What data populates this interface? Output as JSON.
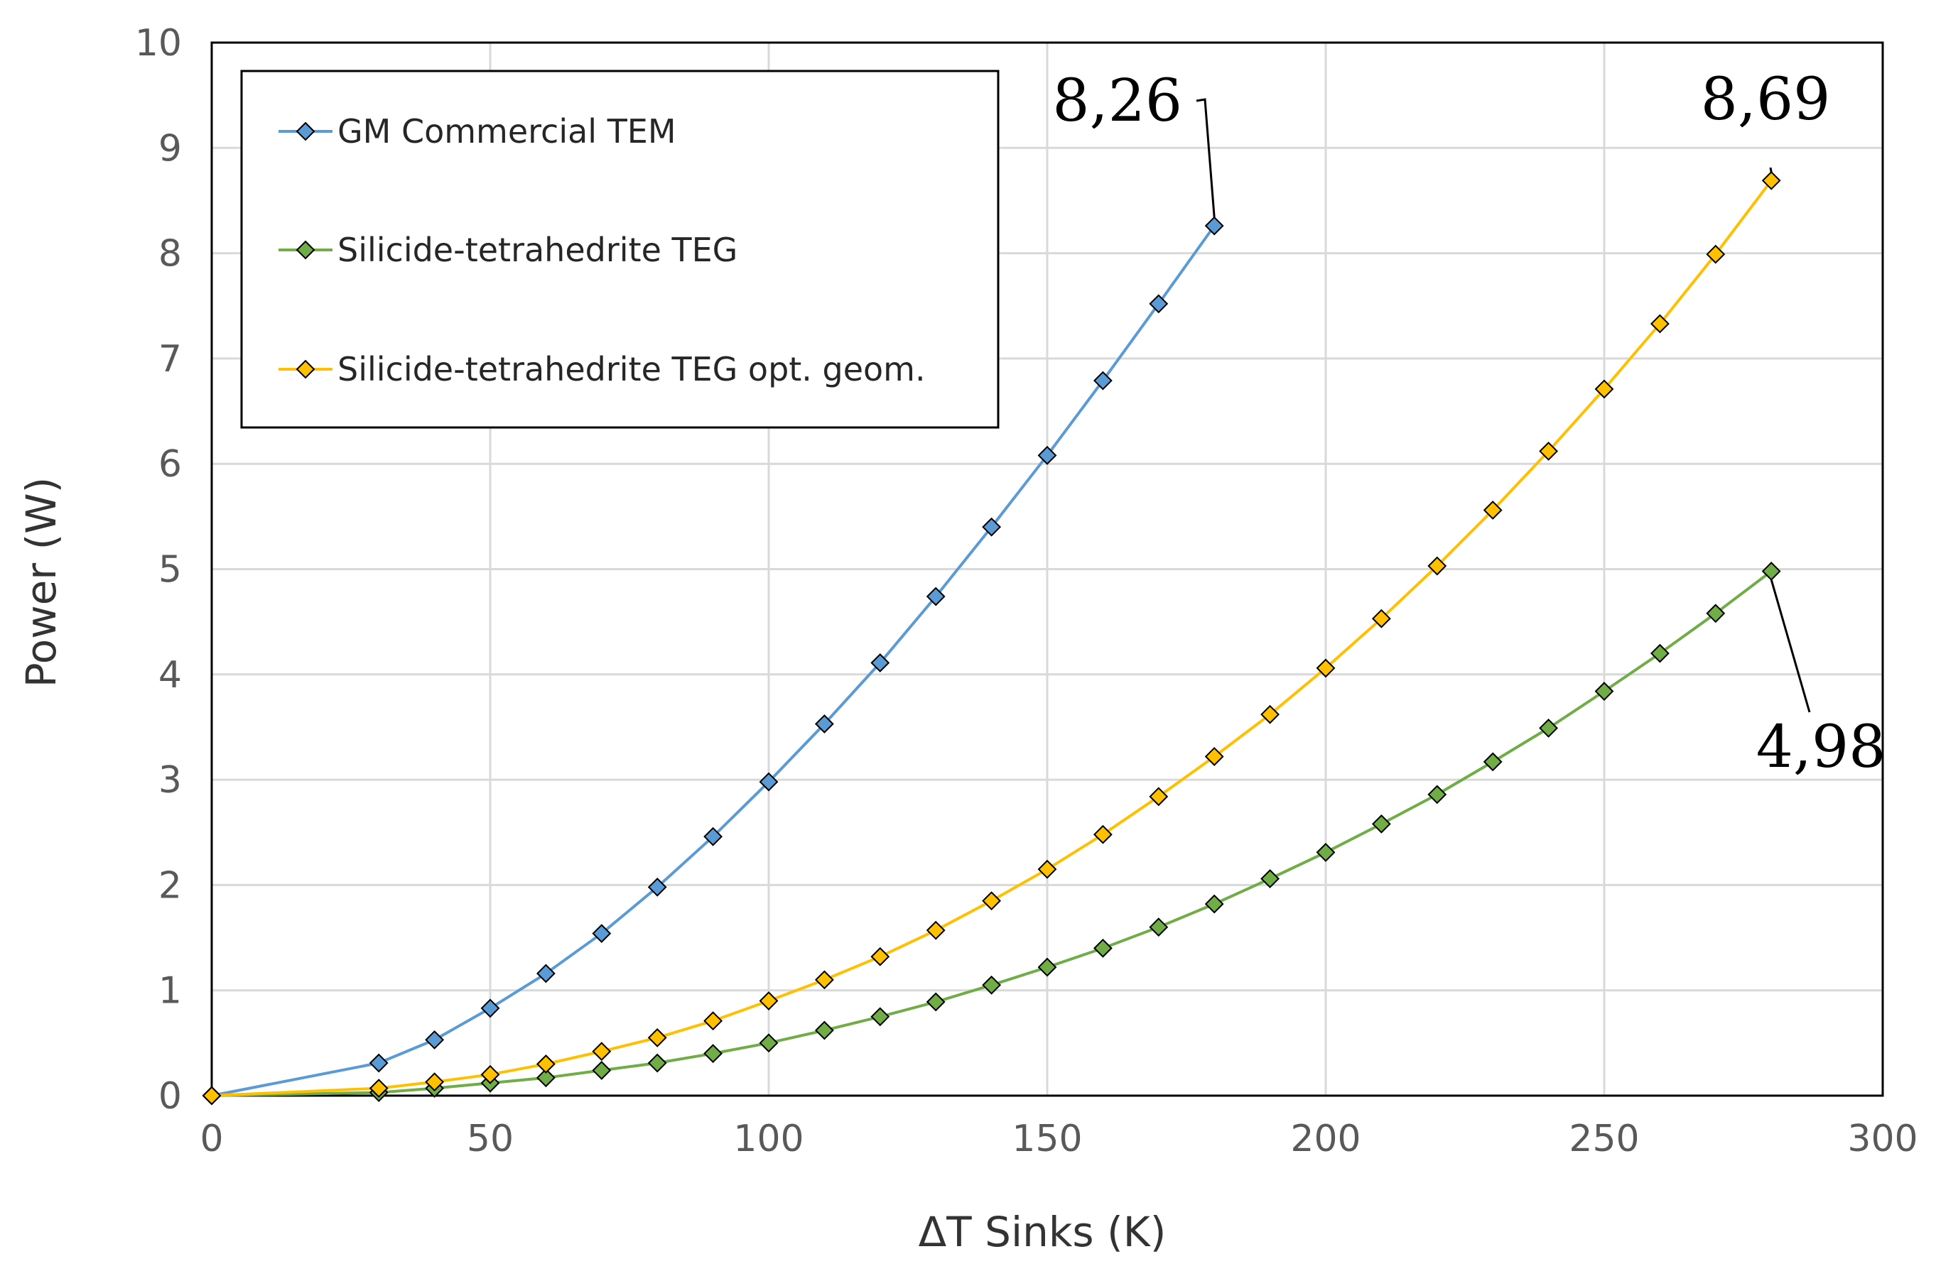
{
  "chart_data": {
    "type": "line",
    "title": "",
    "xlabel": "ΔT Sinks (K)",
    "ylabel": "Power (W)",
    "xlim": [
      0,
      300
    ],
    "ylim": [
      0,
      10
    ],
    "xticks": [
      0,
      50,
      100,
      150,
      200,
      250,
      300
    ],
    "yticks": [
      0,
      1,
      2,
      3,
      4,
      5,
      6,
      7,
      8,
      9,
      10
    ],
    "grid": true,
    "legend_position": "top-left",
    "series": [
      {
        "name": "GM Commercial TEM",
        "color": "#5b9bd5",
        "marker": "diamond",
        "x": [
          0,
          30,
          40,
          50,
          60,
          70,
          80,
          90,
          100,
          110,
          120,
          130,
          140,
          150,
          160,
          170,
          180
        ],
        "y": [
          0,
          0.31,
          0.53,
          0.83,
          1.16,
          1.54,
          1.98,
          2.46,
          2.98,
          3.53,
          4.11,
          4.74,
          5.4,
          6.08,
          6.79,
          7.52,
          8.26
        ]
      },
      {
        "name": "Silicide-tetrahedrite TEG",
        "color": "#70ad47",
        "marker": "diamond",
        "x": [
          0,
          30,
          40,
          50,
          60,
          70,
          80,
          90,
          100,
          110,
          120,
          130,
          140,
          150,
          160,
          170,
          180,
          190,
          200,
          210,
          220,
          230,
          240,
          250,
          260,
          270,
          280
        ],
        "y": [
          0,
          0.03,
          0.07,
          0.12,
          0.17,
          0.24,
          0.31,
          0.4,
          0.5,
          0.62,
          0.75,
          0.89,
          1.05,
          1.22,
          1.4,
          1.6,
          1.82,
          2.06,
          2.31,
          2.58,
          2.86,
          3.17,
          3.49,
          3.84,
          4.2,
          4.58,
          4.98
        ]
      },
      {
        "name": "Silicide-tetrahedrite TEG opt. geom.",
        "color": "#ffc000",
        "marker": "diamond",
        "x": [
          0,
          30,
          40,
          50,
          60,
          70,
          80,
          90,
          100,
          110,
          120,
          130,
          140,
          150,
          160,
          170,
          180,
          190,
          200,
          210,
          220,
          230,
          240,
          250,
          260,
          270,
          280
        ],
        "y": [
          0,
          0.07,
          0.13,
          0.2,
          0.3,
          0.42,
          0.55,
          0.71,
          0.9,
          1.1,
          1.32,
          1.57,
          1.85,
          2.15,
          2.48,
          2.84,
          3.22,
          3.62,
          4.06,
          4.53,
          5.03,
          5.56,
          6.12,
          6.71,
          7.33,
          7.99,
          8.69
        ]
      }
    ],
    "annotations": [
      {
        "text": "8,26",
        "series": 0,
        "x": 180,
        "y": 8.26
      },
      {
        "text": "8,69",
        "series": 2,
        "x": 280,
        "y": 8.69
      },
      {
        "text": "4,98",
        "series": 1,
        "x": 280,
        "y": 4.98
      }
    ]
  }
}
